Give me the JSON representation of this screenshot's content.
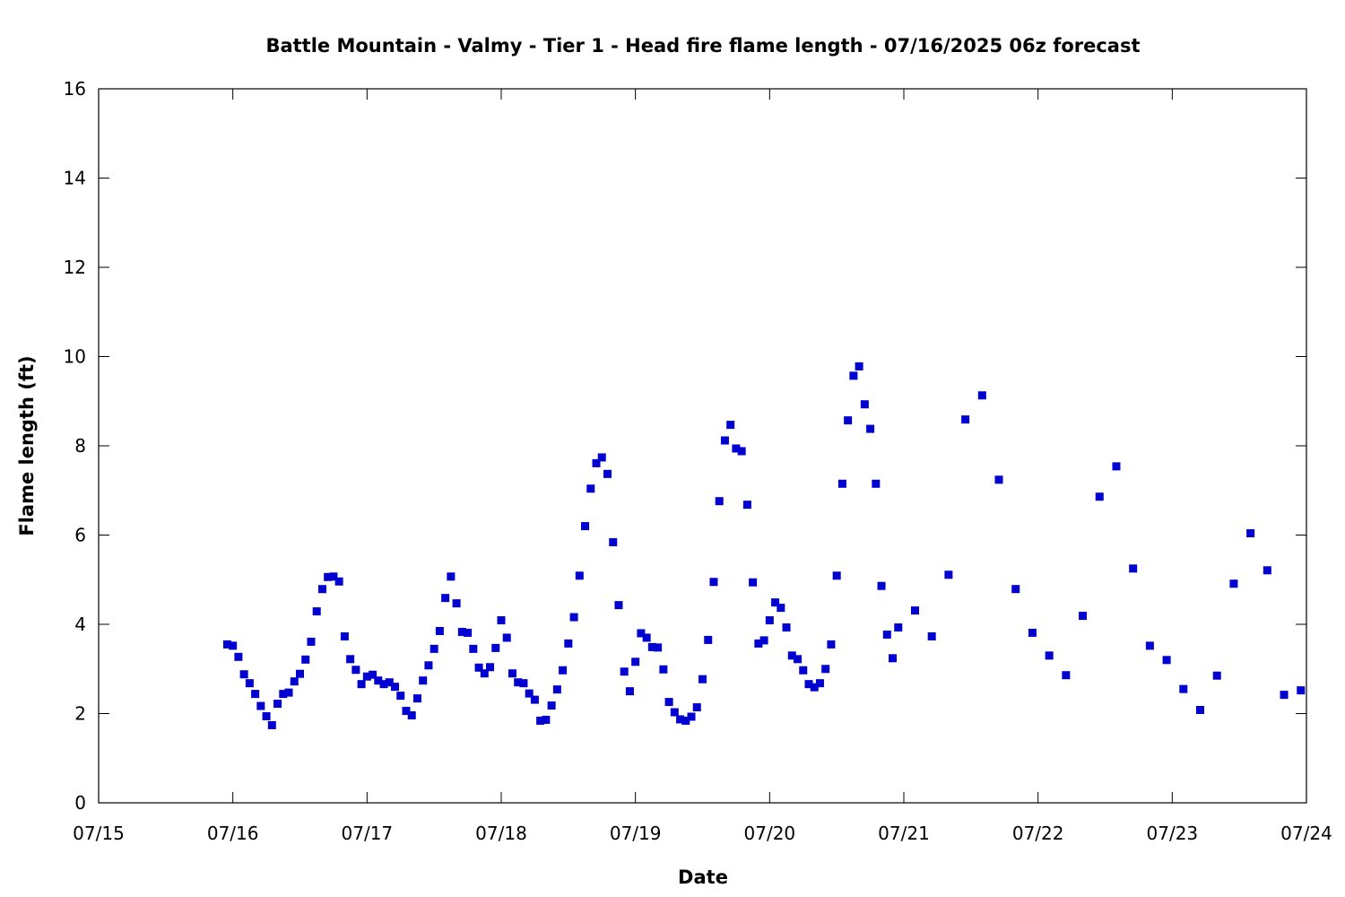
{
  "chart_data": {
    "type": "scatter",
    "title": "Battle Mountain - Valmy - Tier 1 - Head fire flame length - 07/16/2025 06z forecast",
    "xlabel": "Date",
    "ylabel": "Flame length (ft)",
    "xlim": [
      "07/15",
      "07/24"
    ],
    "ylim": [
      0,
      16
    ],
    "x_tick_labels": [
      "07/15",
      "07/16",
      "07/17",
      "07/18",
      "07/19",
      "07/20",
      "07/21",
      "07/22",
      "07/23",
      "07/24"
    ],
    "y_ticks": [
      0,
      2,
      4,
      6,
      8,
      10,
      12,
      14,
      16
    ],
    "grid": false,
    "legend": "none",
    "marker": "square",
    "color": "#0000d0",
    "series": [
      {
        "x": [
          "07/15 23:00",
          "07/16 00:00",
          "07/16 01:00",
          "07/16 02:00",
          "07/16 03:00",
          "07/16 04:00",
          "07/16 05:00",
          "07/16 06:00",
          "07/16 07:00",
          "07/16 08:00",
          "07/16 09:00",
          "07/16 10:00",
          "07/16 11:00",
          "07/16 12:00",
          "07/16 13:00",
          "07/16 14:00",
          "07/16 15:00",
          "07/16 16:00",
          "07/16 17:00",
          "07/16 18:00",
          "07/16 19:00",
          "07/16 20:00",
          "07/16 21:00",
          "07/16 22:00",
          "07/16 23:00",
          "07/17 00:00",
          "07/17 01:00",
          "07/17 02:00",
          "07/17 03:00",
          "07/17 04:00",
          "07/17 05:00",
          "07/17 06:00",
          "07/17 07:00",
          "07/17 08:00",
          "07/17 09:00",
          "07/17 10:00",
          "07/17 11:00",
          "07/17 12:00",
          "07/17 13:00",
          "07/17 14:00",
          "07/17 15:00",
          "07/17 16:00",
          "07/17 17:00",
          "07/17 18:00",
          "07/17 19:00",
          "07/17 20:00",
          "07/17 21:00",
          "07/17 22:00",
          "07/17 23:00",
          "07/18 00:00",
          "07/18 01:00",
          "07/18 02:00",
          "07/18 03:00",
          "07/18 04:00",
          "07/18 05:00",
          "07/18 06:00",
          "07/18 07:00",
          "07/18 08:00",
          "07/18 09:00",
          "07/18 10:00",
          "07/18 11:00",
          "07/18 12:00",
          "07/18 13:00",
          "07/18 14:00",
          "07/18 15:00",
          "07/18 16:00",
          "07/18 17:00",
          "07/18 18:00",
          "07/18 19:00",
          "07/18 20:00",
          "07/18 21:00",
          "07/18 22:00",
          "07/18 23:00",
          "07/19 00:00",
          "07/19 01:00",
          "07/19 02:00",
          "07/19 03:00",
          "07/19 04:00",
          "07/19 05:00",
          "07/19 06:00",
          "07/19 07:00",
          "07/19 08:00",
          "07/19 09:00",
          "07/19 10:00",
          "07/19 11:00",
          "07/19 12:00",
          "07/19 13:00",
          "07/19 14:00",
          "07/19 15:00",
          "07/19 16:00",
          "07/19 17:00",
          "07/19 18:00",
          "07/19 19:00",
          "07/19 20:00",
          "07/19 21:00",
          "07/19 22:00",
          "07/19 23:00",
          "07/20 00:00",
          "07/20 01:00",
          "07/20 02:00",
          "07/20 03:00",
          "07/20 04:00",
          "07/20 05:00",
          "07/20 06:00",
          "07/20 07:00",
          "07/20 08:00",
          "07/20 09:00",
          "07/20 10:00",
          "07/20 11:00",
          "07/20 12:00",
          "07/20 13:00",
          "07/20 14:00",
          "07/20 15:00",
          "07/20 16:00",
          "07/20 17:00",
          "07/20 18:00",
          "07/20 19:00",
          "07/20 20:00",
          "07/20 21:00",
          "07/20 22:00",
          "07/20 23:00",
          "07/21 02:00",
          "07/21 05:00",
          "07/21 08:00",
          "07/21 11:00",
          "07/21 14:00",
          "07/21 17:00",
          "07/21 20:00",
          "07/21 23:00",
          "07/22 02:00",
          "07/22 05:00",
          "07/22 08:00",
          "07/22 11:00",
          "07/22 14:00",
          "07/22 17:00",
          "07/22 20:00",
          "07/22 23:00",
          "07/23 02:00",
          "07/23 05:00",
          "07/23 08:00",
          "07/23 11:00",
          "07/23 14:00",
          "07/23 17:00",
          "07/23 20:00",
          "07/23 23:00"
        ],
        "y": [
          3.55,
          3.52,
          3.27,
          2.88,
          2.68,
          2.44,
          2.17,
          1.94,
          1.74,
          2.22,
          2.44,
          2.47,
          2.72,
          2.89,
          3.21,
          3.61,
          4.29,
          4.79,
          5.06,
          5.07,
          4.96,
          3.73,
          3.22,
          2.98,
          2.66,
          2.83,
          2.87,
          2.74,
          2.66,
          2.7,
          2.6,
          2.4,
          2.06,
          1.96,
          2.34,
          2.74,
          3.08,
          3.45,
          3.85,
          4.59,
          5.07,
          4.47,
          3.83,
          3.81,
          3.45,
          3.03,
          2.9,
          3.04,
          3.47,
          4.09,
          3.7,
          2.9,
          2.7,
          2.68,
          2.45,
          2.31,
          1.84,
          1.86,
          2.18,
          2.54,
          2.97,
          3.57,
          4.16,
          5.09,
          6.2,
          7.04,
          7.61,
          7.74,
          7.37,
          5.84,
          4.43,
          2.94,
          2.5,
          3.16,
          3.8,
          3.7,
          3.49,
          3.48,
          2.99,
          2.26,
          2.03,
          1.87,
          1.84,
          1.93,
          2.14,
          2.77,
          3.65,
          4.95,
          6.76,
          8.12,
          8.47,
          7.94,
          7.88,
          6.68,
          4.94,
          3.57,
          3.64,
          4.09,
          4.49,
          4.37,
          3.93,
          3.3,
          3.22,
          2.97,
          2.66,
          2.59,
          2.68,
          3.0,
          3.55,
          5.09,
          7.15,
          8.57,
          9.57,
          9.78,
          8.93,
          8.38,
          7.15,
          4.86,
          3.77,
          3.24,
          3.93,
          4.31,
          3.73,
          5.11,
          8.59,
          9.13,
          7.24,
          4.79,
          3.81,
          3.3,
          2.86,
          4.19,
          6.86,
          7.54,
          5.25,
          3.52,
          3.2,
          2.55,
          2.08,
          2.85,
          4.91,
          6.04,
          5.21,
          2.42,
          2.52
        ]
      }
    ]
  }
}
